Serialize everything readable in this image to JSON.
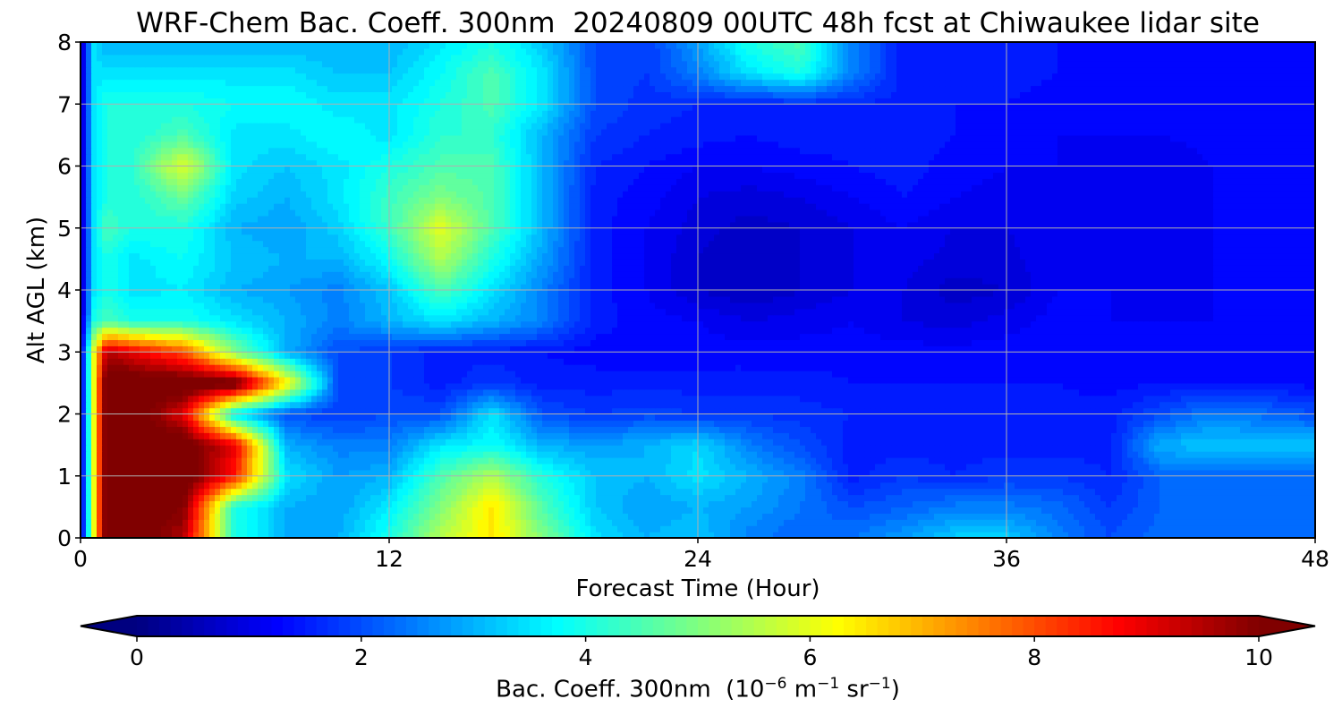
{
  "chart_data": {
    "type": "heatmap",
    "title": "WRF-Chem Bac. Coeff. 300nm  20240809 00UTC 48h fcst at Chiwaukee lidar site",
    "xlabel": "Forecast Time (Hour)",
    "ylabel": "Alt AGL (km)",
    "xlim": [
      0,
      48
    ],
    "ylim": [
      0,
      8
    ],
    "x_ticks": [
      0,
      12,
      24,
      36,
      48
    ],
    "y_ticks": [
      0,
      1,
      2,
      3,
      4,
      5,
      6,
      7,
      8
    ],
    "grid": true,
    "colormap": "jet",
    "colorbar": {
      "orientation": "horizontal",
      "position": "bottom",
      "range": [
        0,
        10
      ],
      "ticks": [
        0,
        2,
        4,
        6,
        8,
        10
      ],
      "extend": "both",
      "label_main": "Bac. Coeff. 300nm  (10",
      "label_exp1": "−6",
      "label_mid1": " m",
      "label_exp2": "−1",
      "label_mid2": " sr",
      "label_exp3": "−1",
      "label_end": ")"
    },
    "x": [
      0,
      0.5,
      1,
      2,
      4,
      6,
      8,
      10,
      12,
      14,
      16,
      18,
      20,
      22,
      24,
      26,
      28,
      30,
      32,
      34,
      36,
      38,
      40,
      42,
      44,
      46,
      48
    ],
    "y": [
      0,
      0.5,
      1,
      1.5,
      2,
      2.5,
      3,
      3.5,
      4,
      4.5,
      5,
      5.5,
      6,
      6.5,
      7,
      7.5,
      8
    ],
    "z": [
      [
        0.5,
        6.0,
        10.5,
        10.5,
        9.5,
        4.0,
        3.0,
        3.0,
        4.0,
        5.5,
        6.5,
        5.0,
        3.5,
        3.0,
        3.2,
        2.5,
        2.2,
        2.4,
        2.8,
        3.3,
        3.3,
        2.5,
        2.0,
        2.3,
        2.3,
        2.3,
        2.3
      ],
      [
        0.5,
        6.0,
        10.5,
        10.5,
        10.0,
        4.0,
        3.0,
        2.8,
        3.6,
        5.0,
        6.5,
        4.5,
        3.2,
        2.8,
        3.0,
        2.8,
        2.4,
        2.0,
        2.2,
        2.5,
        2.5,
        2.3,
        1.8,
        2.2,
        2.2,
        2.2,
        2.2
      ],
      [
        0.5,
        6.0,
        10.5,
        10.5,
        10.5,
        8.5,
        3.5,
        2.8,
        3.0,
        4.5,
        5.5,
        4.0,
        3.2,
        3.0,
        3.5,
        3.0,
        2.5,
        1.5,
        1.8,
        1.6,
        1.8,
        1.8,
        1.6,
        2.2,
        2.2,
        2.2,
        2.2
      ],
      [
        0.5,
        6.0,
        10.5,
        10.5,
        10.5,
        9.0,
        3.0,
        2.5,
        2.5,
        3.5,
        3.8,
        3.0,
        2.8,
        3.0,
        3.4,
        2.5,
        2.0,
        1.5,
        1.5,
        1.5,
        1.5,
        1.5,
        1.5,
        3.0,
        3.2,
        3.2,
        3.2
      ],
      [
        0.5,
        6.0,
        10.5,
        10.5,
        9.0,
        3.5,
        2.0,
        1.8,
        2.0,
        2.0,
        3.5,
        2.0,
        1.8,
        1.9,
        1.8,
        1.8,
        1.7,
        1.6,
        1.6,
        1.5,
        1.5,
        1.5,
        1.5,
        2.0,
        2.5,
        2.3,
        2.0
      ],
      [
        0.5,
        6.0,
        10.5,
        10.5,
        10.5,
        10.5,
        6.5,
        2.0,
        1.8,
        1.5,
        1.8,
        1.5,
        1.5,
        1.5,
        1.5,
        1.5,
        1.5,
        1.4,
        1.4,
        1.4,
        1.4,
        1.4,
        1.3,
        1.4,
        1.4,
        1.4,
        1.3
      ],
      [
        0.5,
        6.0,
        9.5,
        9.0,
        8.0,
        5.0,
        3.0,
        2.0,
        1.8,
        1.5,
        1.5,
        1.4,
        1.3,
        1.3,
        1.3,
        1.3,
        1.3,
        1.3,
        1.3,
        1.3,
        1.3,
        1.3,
        1.3,
        1.3,
        1.3,
        1.3,
        1.3
      ],
      [
        0.5,
        4.0,
        4.5,
        4.0,
        4.0,
        3.5,
        3.0,
        2.5,
        3.0,
        3.5,
        3.0,
        2.5,
        1.5,
        1.3,
        1.2,
        1.0,
        1.1,
        1.2,
        1.0,
        0.9,
        1.1,
        1.3,
        1.2,
        1.2,
        1.2,
        1.3,
        1.3
      ],
      [
        0.5,
        3.5,
        4.0,
        3.5,
        3.6,
        3.0,
        2.8,
        2.5,
        3.2,
        4.5,
        3.5,
        2.5,
        1.5,
        1.2,
        0.8,
        0.6,
        0.8,
        1.0,
        1.0,
        0.7,
        0.8,
        1.2,
        1.2,
        1.2,
        1.2,
        1.3,
        1.3
      ],
      [
        0.5,
        3.5,
        4.0,
        3.5,
        3.8,
        3.2,
        3.0,
        3.0,
        3.8,
        5.5,
        4.0,
        2.8,
        1.5,
        1.2,
        0.8,
        0.6,
        0.8,
        1.0,
        1.1,
        0.9,
        0.9,
        1.2,
        1.2,
        1.2,
        1.2,
        1.3,
        1.3
      ],
      [
        0.5,
        3.5,
        4.5,
        4.0,
        4.0,
        3.0,
        2.8,
        3.3,
        4.3,
        6.0,
        4.5,
        3.0,
        1.5,
        1.2,
        0.9,
        0.7,
        0.8,
        1.0,
        1.2,
        1.0,
        1.0,
        1.2,
        1.1,
        1.1,
        1.2,
        1.3,
        1.3
      ],
      [
        0.5,
        3.5,
        4.0,
        4.0,
        4.8,
        3.3,
        3.0,
        3.5,
        4.3,
        5.0,
        4.5,
        3.0,
        1.5,
        1.3,
        1.0,
        0.9,
        1.0,
        1.2,
        1.4,
        1.2,
        1.1,
        1.2,
        1.0,
        1.0,
        1.2,
        1.3,
        1.3
      ],
      [
        0.5,
        3.5,
        4.0,
        4.2,
        6.0,
        3.5,
        3.2,
        3.5,
        4.0,
        4.5,
        4.5,
        3.0,
        1.6,
        1.4,
        1.2,
        1.2,
        1.3,
        1.4,
        1.5,
        1.3,
        1.2,
        1.2,
        1.0,
        1.0,
        1.2,
        1.3,
        1.3
      ],
      [
        0.5,
        3.5,
        4.0,
        4.0,
        4.5,
        3.5,
        3.5,
        3.8,
        3.5,
        4.2,
        4.2,
        3.0,
        1.8,
        1.6,
        1.5,
        1.4,
        1.5,
        1.5,
        1.5,
        1.4,
        1.3,
        1.2,
        1.2,
        1.2,
        1.3,
        1.3,
        1.3
      ],
      [
        0.5,
        3.5,
        4.0,
        4.0,
        4.0,
        3.8,
        3.8,
        3.5,
        3.5,
        4.0,
        4.5,
        3.5,
        2.0,
        1.7,
        1.6,
        1.5,
        1.6,
        1.6,
        1.5,
        1.4,
        1.4,
        1.3,
        1.3,
        1.4,
        1.4,
        1.4,
        1.4
      ],
      [
        0.5,
        3.5,
        3.5,
        3.5,
        3.5,
        3.5,
        3.5,
        3.2,
        3.2,
        3.8,
        4.5,
        3.5,
        2.0,
        1.8,
        2.5,
        3.5,
        4.0,
        2.5,
        1.5,
        1.5,
        1.5,
        1.4,
        1.4,
        1.4,
        1.4,
        1.4,
        1.4
      ],
      [
        0.5,
        3.5,
        3.0,
        3.0,
        3.0,
        3.0,
        3.0,
        3.0,
        3.0,
        3.5,
        4.0,
        3.2,
        2.0,
        1.8,
        2.8,
        4.0,
        4.5,
        2.5,
        1.5,
        1.4,
        1.4,
        1.4,
        1.4,
        1.4,
        1.4,
        1.4,
        1.4
      ]
    ]
  }
}
